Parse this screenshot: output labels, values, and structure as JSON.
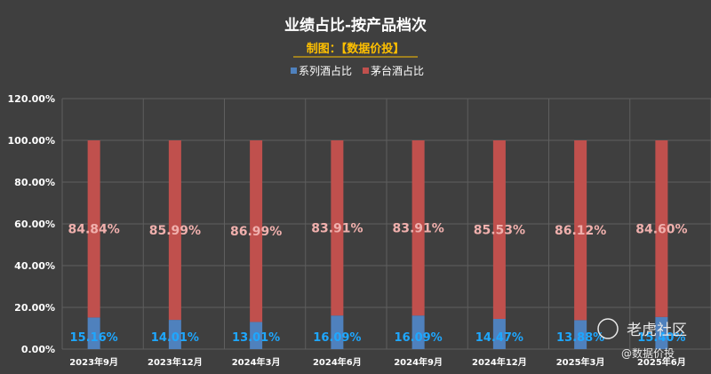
{
  "chart_data": {
    "type": "bar",
    "stacked": true,
    "title": "业绩占比-按产品档次",
    "subtitle": "制图：【数据价投】",
    "categories": [
      "2023年9月",
      "2023年12月",
      "2024年3月",
      "2024年6月",
      "2024年9月",
      "2024年12月",
      "2025年3月",
      "2025年6月"
    ],
    "series": [
      {
        "name": "系列酒占比",
        "color": "#4f81bd",
        "label_color": "#1ea7ff",
        "values": [
          15.16,
          14.01,
          13.01,
          16.09,
          16.09,
          14.47,
          13.88,
          15.4
        ],
        "labels": [
          "15.16%",
          "14.01%",
          "13.01%",
          "16.09%",
          "16.09%",
          "14.47%",
          "13.88%",
          "15.40%"
        ]
      },
      {
        "name": "茅台酒占比",
        "color": "#c0504d",
        "label_color": "#f0b0ad",
        "values": [
          84.84,
          85.99,
          86.99,
          83.91,
          83.91,
          85.53,
          86.12,
          84.6
        ],
        "labels": [
          "84.84%",
          "85.99%",
          "86.99%",
          "83.91%",
          "83.91%",
          "85.53%",
          "86.12%",
          "84.60%"
        ]
      }
    ],
    "y_ticks": [
      "0.00%",
      "20.00%",
      "40.00%",
      "60.00%",
      "80.00%",
      "100.00%",
      "120.00%"
    ],
    "ylim": [
      0,
      120
    ],
    "legend_position": "top",
    "grid": true
  },
  "watermark": {
    "brand": "老虎社区",
    "handle": "@数据价投"
  },
  "colors": {
    "background": "#3f3f3f",
    "grid": "#5f5f5f",
    "axis_text": "#ffffff",
    "subtitle": "#ffc000"
  }
}
